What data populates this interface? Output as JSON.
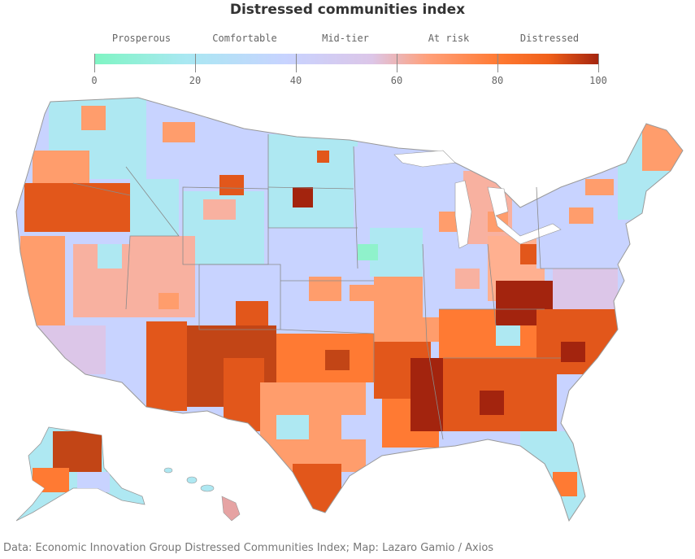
{
  "title": "Distressed communities index",
  "legend": {
    "categories": [
      "Prosperous",
      "Comfortable",
      "Mid-tier",
      "At risk",
      "Distressed"
    ],
    "ticks": [
      "0",
      "20",
      "40",
      "60",
      "80",
      "100"
    ],
    "min": 0,
    "max": 100,
    "colors": [
      "#7ff5c3",
      "#a9e8f2",
      "#c8d3ff",
      "#dcc6e8",
      "#ffa07a",
      "#ff7a33",
      "#f0601a",
      "#a3240e"
    ]
  },
  "map": {
    "state_fill_default": "#c8d3ff",
    "border_color": "#999999",
    "distressed_color": "#e2571b",
    "at_risk_color": "#ff9d6c",
    "comfortable_color": "#aee8f2",
    "prosperous_color": "#8ff2cb",
    "severe_color": "#a3240e"
  },
  "source": "Data: Economic Innovation Group Distressed Communities Index; Map: Lazaro Gamio / Axios"
}
